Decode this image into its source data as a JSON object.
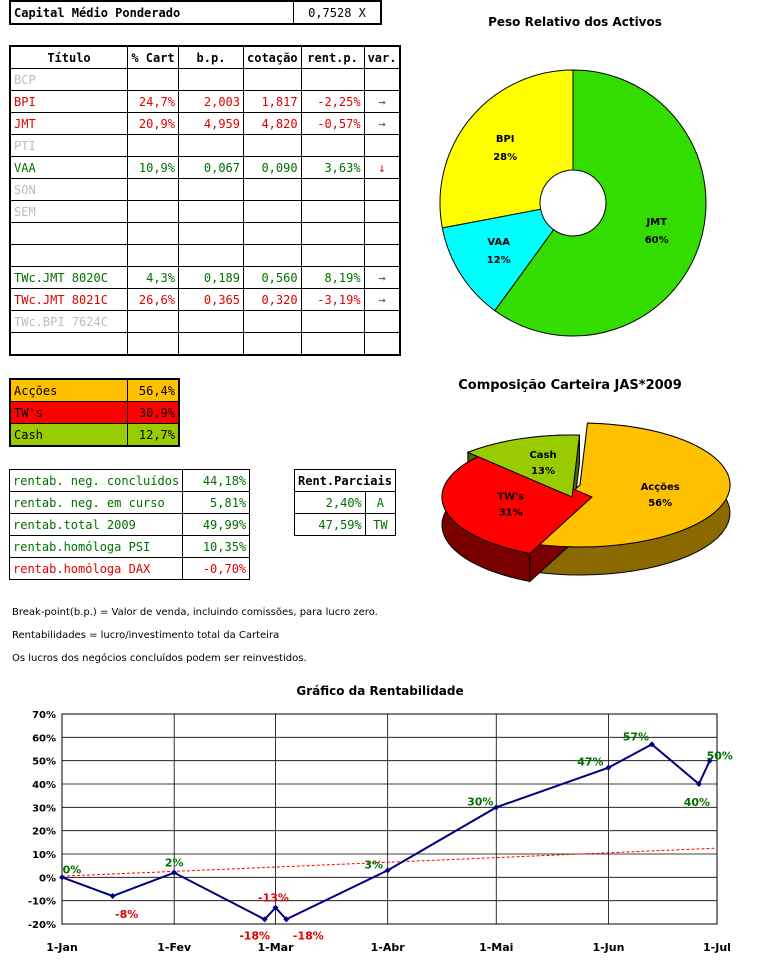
{
  "capital": {
    "label": "Capital Médio Ponderado",
    "value": "0,7528 X"
  },
  "portfolio": {
    "headers": [
      "Título",
      "% Cart",
      "b.p.",
      "cotação",
      "rent.p.",
      "var."
    ],
    "rows": [
      {
        "t": "BCP",
        "c": "",
        "bp": "",
        "cot": "",
        "rent": "",
        "var": "",
        "style": "grey"
      },
      {
        "t": "BPI",
        "c": "24,7%",
        "bp": "2,003",
        "cot": "1,817",
        "rent": "-2,25%",
        "var": "→",
        "style": "red"
      },
      {
        "t": "JMT",
        "c": "20,9%",
        "bp": "4,959",
        "cot": "4,820",
        "rent": "-0,57%",
        "var": "→",
        "style": "red"
      },
      {
        "t": "PTI",
        "c": "",
        "bp": "",
        "cot": "",
        "rent": "",
        "var": "",
        "style": "grey"
      },
      {
        "t": "VAA",
        "c": "10,9%",
        "bp": "0,067",
        "cot": "0,090",
        "rent": "3,63%",
        "var": "↓",
        "style": "green"
      },
      {
        "t": "SON",
        "c": "",
        "bp": "",
        "cot": "",
        "rent": "",
        "var": "",
        "style": "grey"
      },
      {
        "t": "SEM",
        "c": "",
        "bp": "",
        "cot": "",
        "rent": "",
        "var": "",
        "style": "grey"
      },
      {
        "t": "",
        "c": "",
        "bp": "",
        "cot": "",
        "rent": "",
        "var": "",
        "style": ""
      },
      {
        "t": "",
        "c": "",
        "bp": "",
        "cot": "",
        "rent": "",
        "var": "",
        "style": ""
      },
      {
        "t": "TWc.JMT 8020C",
        "c": "4,3%",
        "bp": "0,189",
        "cot": "0,560",
        "rent": "8,19%",
        "var": "→",
        "style": "green"
      },
      {
        "t": "TWc.JMT 8021C",
        "c": "26,6%",
        "bp": "0,365",
        "cot": "0,320",
        "rent": "-3,19%",
        "var": "→",
        "style": "red"
      },
      {
        "t": "TWc.BPI 7624C",
        "c": "",
        "bp": "",
        "cot": "",
        "rent": "",
        "var": "",
        "style": "grey"
      },
      {
        "t": "",
        "c": "",
        "bp": "",
        "cot": "",
        "rent": "",
        "var": "",
        "style": ""
      }
    ]
  },
  "allocation": [
    {
      "label": "Acções",
      "value": "56,4%",
      "color": "#ffc000"
    },
    {
      "label": "TW's",
      "value": "30,9%",
      "color": "#ff0000"
    },
    {
      "label": "Cash",
      "value": "12,7%",
      "color": "#99cc00"
    }
  ],
  "returns": [
    {
      "label": "rentab. neg. concluídos",
      "value": "44,18%",
      "style": "green"
    },
    {
      "label": "rentab. neg. em curso",
      "value": "5,81%",
      "style": "green"
    },
    {
      "label": "rentab.total 2009",
      "value": "49,99%",
      "style": "green"
    },
    {
      "label": "rentab.homóloga PSI",
      "value": "10,35%",
      "style": "green"
    },
    {
      "label": "rentab.homóloga DAX",
      "value": "-0,70%",
      "style": "red"
    }
  ],
  "partial": {
    "header": "Rent.Parciais",
    "rows": [
      {
        "v": "2,40%",
        "k": "A"
      },
      {
        "v": "47,59%",
        "k": "TW"
      }
    ]
  },
  "notes": [
    "Break-point(b.p.) = Valor de venda, incluindo comissões, para lucro zero.",
    "Rentabilidades = lucro/investimento total da Carteira",
    "Os lucros dos negócios concluídos podem ser reinvestidos."
  ],
  "chart_data": [
    {
      "type": "pie",
      "title": "Peso Relativo dos Activos",
      "style": "doughnut",
      "slices": [
        {
          "label": "JMT",
          "pct": "60%",
          "value": 60,
          "color": "#33dd00"
        },
        {
          "label": "VAA",
          "pct": "12%",
          "value": 12,
          "color": "#00ffff"
        },
        {
          "label": "BPI",
          "pct": "28%",
          "value": 28,
          "color": "#ffff00"
        }
      ]
    },
    {
      "type": "pie",
      "title": "Composição Carteira JAS*2009",
      "style": "3d-exploded",
      "slices": [
        {
          "label": "Acções",
          "pct": "56%",
          "value": 56,
          "color": "#ffc000"
        },
        {
          "label": "TW's",
          "pct": "31%",
          "value": 31,
          "color": "#ff0000"
        },
        {
          "label": "Cash",
          "pct": "13%",
          "value": 13,
          "color": "#99cc00"
        }
      ]
    },
    {
      "type": "line",
      "title": "Gráfico da Rentabilidade",
      "ylim": [
        -20,
        70
      ],
      "yticks": [
        "-20%",
        "-10%",
        "0%",
        "10%",
        "20%",
        "30%",
        "40%",
        "50%",
        "60%",
        "70%"
      ],
      "xticks": [
        "1-Jan",
        "1-Fev",
        "1-Mar",
        "1-Abr",
        "1-Mai",
        "1-Jun",
        "1-Jul"
      ],
      "grid": true,
      "series": [
        {
          "color": "#000080",
          "points": [
            {
              "x": "2009-01-01",
              "y": 0,
              "label": "0%",
              "lc": "green"
            },
            {
              "x": "2009-01-15",
              "y": -8,
              "label": "-8%",
              "lc": "red"
            },
            {
              "x": "2009-02-01",
              "y": 2,
              "label": "2%",
              "lc": "green"
            },
            {
              "x": "2009-02-26",
              "y": -18,
              "label": "-18%",
              "lc": "red"
            },
            {
              "x": "2009-03-01",
              "y": -13,
              "label": "-13%",
              "lc": "red"
            },
            {
              "x": "2009-03-04",
              "y": -18,
              "label": "-18%",
              "lc": "red"
            },
            {
              "x": "2009-04-01",
              "y": 3,
              "label": "3%",
              "lc": "green"
            },
            {
              "x": "2009-05-01",
              "y": 30,
              "label": "30%",
              "lc": "green"
            },
            {
              "x": "2009-06-01",
              "y": 47,
              "label": "47%",
              "lc": "green"
            },
            {
              "x": "2009-06-13",
              "y": 57,
              "label": "57%",
              "lc": "green"
            },
            {
              "x": "2009-06-26",
              "y": 40,
              "label": "40%",
              "lc": "green"
            },
            {
              "x": "2009-06-29",
              "y": 50,
              "label": "50%",
              "lc": "green"
            }
          ]
        },
        {
          "color": "#ff0000",
          "dashed": true,
          "points": [
            {
              "x": "2009-01-01",
              "y": 0.5
            },
            {
              "x": "2009-07-01",
              "y": 12.5
            }
          ]
        }
      ]
    }
  ]
}
